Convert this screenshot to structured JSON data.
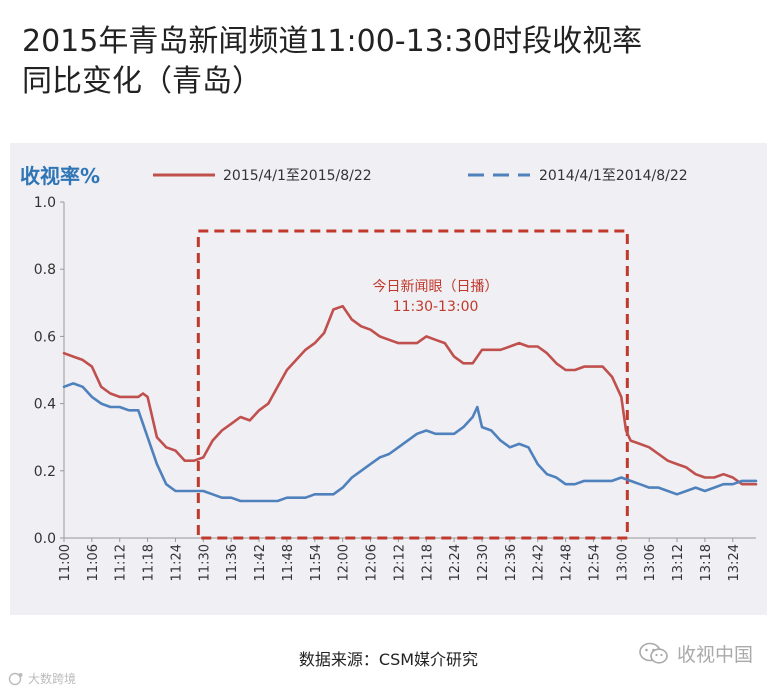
{
  "header": {
    "title_line1": "2015年青岛新闻频道11:00-13:30时段收视率",
    "title_line2": "同比变化（青岛）"
  },
  "footer": {
    "source": "数据来源：CSM媒介研究",
    "watermark_right": "收视中国",
    "watermark_left": "大数跨境"
  },
  "chart_data": {
    "type": "line",
    "ylabel": "收视率%",
    "ylim": [
      0.0,
      1.0
    ],
    "yticks": [
      "0.0",
      "0.2",
      "0.4",
      "0.6",
      "0.8",
      "1.0"
    ],
    "xlim": [
      "11:00",
      "13:29"
    ],
    "xticks": [
      "11:00",
      "11:06",
      "11:12",
      "11:18",
      "11:24",
      "11:30",
      "11:36",
      "11:42",
      "11:48",
      "11:54",
      "12:00",
      "12:06",
      "12:12",
      "12:18",
      "12:24",
      "12:30",
      "12:36",
      "12:42",
      "12:48",
      "12:54",
      "13:00",
      "13:06",
      "13:12",
      "13:18",
      "13:24"
    ],
    "grid": false,
    "legend_position": "top",
    "annotation": {
      "label_line1": "今日新闻眼（日播）",
      "label_line2": "11:30-13:00",
      "x_range": [
        "11:30",
        "13:00"
      ],
      "color": "#c0392b"
    },
    "series": [
      {
        "name": "2015/4/1至2015/8/22",
        "color": "#c0504d",
        "style": "solid",
        "points": [
          [
            "11:00",
            0.55
          ],
          [
            "11:02",
            0.54
          ],
          [
            "11:04",
            0.53
          ],
          [
            "11:06",
            0.51
          ],
          [
            "11:08",
            0.45
          ],
          [
            "11:10",
            0.43
          ],
          [
            "11:12",
            0.42
          ],
          [
            "11:14",
            0.42
          ],
          [
            "11:16",
            0.42
          ],
          [
            "11:17",
            0.43
          ],
          [
            "11:18",
            0.42
          ],
          [
            "11:20",
            0.3
          ],
          [
            "11:22",
            0.27
          ],
          [
            "11:24",
            0.26
          ],
          [
            "11:26",
            0.23
          ],
          [
            "11:28",
            0.23
          ],
          [
            "11:30",
            0.24
          ],
          [
            "11:32",
            0.29
          ],
          [
            "11:34",
            0.32
          ],
          [
            "11:36",
            0.34
          ],
          [
            "11:38",
            0.36
          ],
          [
            "11:40",
            0.35
          ],
          [
            "11:42",
            0.38
          ],
          [
            "11:44",
            0.4
          ],
          [
            "11:46",
            0.45
          ],
          [
            "11:48",
            0.5
          ],
          [
            "11:50",
            0.53
          ],
          [
            "11:52",
            0.56
          ],
          [
            "11:54",
            0.58
          ],
          [
            "11:56",
            0.61
          ],
          [
            "11:58",
            0.68
          ],
          [
            "12:00",
            0.69
          ],
          [
            "12:02",
            0.65
          ],
          [
            "12:04",
            0.63
          ],
          [
            "12:06",
            0.62
          ],
          [
            "12:08",
            0.6
          ],
          [
            "12:10",
            0.59
          ],
          [
            "12:12",
            0.58
          ],
          [
            "12:14",
            0.58
          ],
          [
            "12:16",
            0.58
          ],
          [
            "12:18",
            0.6
          ],
          [
            "12:20",
            0.59
          ],
          [
            "12:22",
            0.58
          ],
          [
            "12:24",
            0.54
          ],
          [
            "12:26",
            0.52
          ],
          [
            "12:28",
            0.52
          ],
          [
            "12:30",
            0.56
          ],
          [
            "12:32",
            0.56
          ],
          [
            "12:34",
            0.56
          ],
          [
            "12:36",
            0.57
          ],
          [
            "12:38",
            0.58
          ],
          [
            "12:40",
            0.57
          ],
          [
            "12:42",
            0.57
          ],
          [
            "12:44",
            0.55
          ],
          [
            "12:46",
            0.52
          ],
          [
            "12:48",
            0.5
          ],
          [
            "12:50",
            0.5
          ],
          [
            "12:52",
            0.51
          ],
          [
            "12:54",
            0.51
          ],
          [
            "12:56",
            0.51
          ],
          [
            "12:58",
            0.48
          ],
          [
            "13:00",
            0.42
          ],
          [
            "13:01",
            0.32
          ],
          [
            "13:02",
            0.29
          ],
          [
            "13:04",
            0.28
          ],
          [
            "13:06",
            0.27
          ],
          [
            "13:08",
            0.25
          ],
          [
            "13:10",
            0.23
          ],
          [
            "13:12",
            0.22
          ],
          [
            "13:14",
            0.21
          ],
          [
            "13:16",
            0.19
          ],
          [
            "13:18",
            0.18
          ],
          [
            "13:20",
            0.18
          ],
          [
            "13:22",
            0.19
          ],
          [
            "13:24",
            0.18
          ],
          [
            "13:26",
            0.16
          ],
          [
            "13:29",
            0.16
          ]
        ]
      },
      {
        "name": "2014/4/1至2014/8/22",
        "color": "#4f81bd",
        "style": "dashed",
        "points": [
          [
            "11:00",
            0.45
          ],
          [
            "11:02",
            0.46
          ],
          [
            "11:04",
            0.45
          ],
          [
            "11:06",
            0.42
          ],
          [
            "11:08",
            0.4
          ],
          [
            "11:10",
            0.39
          ],
          [
            "11:12",
            0.39
          ],
          [
            "11:14",
            0.38
          ],
          [
            "11:16",
            0.38
          ],
          [
            "11:18",
            0.3
          ],
          [
            "11:20",
            0.22
          ],
          [
            "11:22",
            0.16
          ],
          [
            "11:24",
            0.14
          ],
          [
            "11:26",
            0.14
          ],
          [
            "11:28",
            0.14
          ],
          [
            "11:30",
            0.14
          ],
          [
            "11:32",
            0.13
          ],
          [
            "11:34",
            0.12
          ],
          [
            "11:36",
            0.12
          ],
          [
            "11:38",
            0.11
          ],
          [
            "11:40",
            0.11
          ],
          [
            "11:42",
            0.11
          ],
          [
            "11:44",
            0.11
          ],
          [
            "11:46",
            0.11
          ],
          [
            "11:48",
            0.12
          ],
          [
            "11:50",
            0.12
          ],
          [
            "11:52",
            0.12
          ],
          [
            "11:54",
            0.13
          ],
          [
            "11:56",
            0.13
          ],
          [
            "11:58",
            0.13
          ],
          [
            "12:00",
            0.15
          ],
          [
            "12:02",
            0.18
          ],
          [
            "12:04",
            0.2
          ],
          [
            "12:06",
            0.22
          ],
          [
            "12:08",
            0.24
          ],
          [
            "12:10",
            0.25
          ],
          [
            "12:12",
            0.27
          ],
          [
            "12:14",
            0.29
          ],
          [
            "12:16",
            0.31
          ],
          [
            "12:18",
            0.32
          ],
          [
            "12:20",
            0.31
          ],
          [
            "12:22",
            0.31
          ],
          [
            "12:24",
            0.31
          ],
          [
            "12:26",
            0.33
          ],
          [
            "12:28",
            0.36
          ],
          [
            "12:29",
            0.39
          ],
          [
            "12:30",
            0.33
          ],
          [
            "12:32",
            0.32
          ],
          [
            "12:34",
            0.29
          ],
          [
            "12:36",
            0.27
          ],
          [
            "12:38",
            0.28
          ],
          [
            "12:40",
            0.27
          ],
          [
            "12:42",
            0.22
          ],
          [
            "12:44",
            0.19
          ],
          [
            "12:46",
            0.18
          ],
          [
            "12:48",
            0.16
          ],
          [
            "12:50",
            0.16
          ],
          [
            "12:52",
            0.17
          ],
          [
            "12:54",
            0.17
          ],
          [
            "12:56",
            0.17
          ],
          [
            "12:58",
            0.17
          ],
          [
            "13:00",
            0.18
          ],
          [
            "13:02",
            0.17
          ],
          [
            "13:04",
            0.16
          ],
          [
            "13:06",
            0.15
          ],
          [
            "13:08",
            0.15
          ],
          [
            "13:10",
            0.14
          ],
          [
            "13:12",
            0.13
          ],
          [
            "13:14",
            0.14
          ],
          [
            "13:16",
            0.15
          ],
          [
            "13:18",
            0.14
          ],
          [
            "13:20",
            0.15
          ],
          [
            "13:22",
            0.16
          ],
          [
            "13:24",
            0.16
          ],
          [
            "13:26",
            0.17
          ],
          [
            "13:29",
            0.17
          ]
        ]
      }
    ]
  }
}
